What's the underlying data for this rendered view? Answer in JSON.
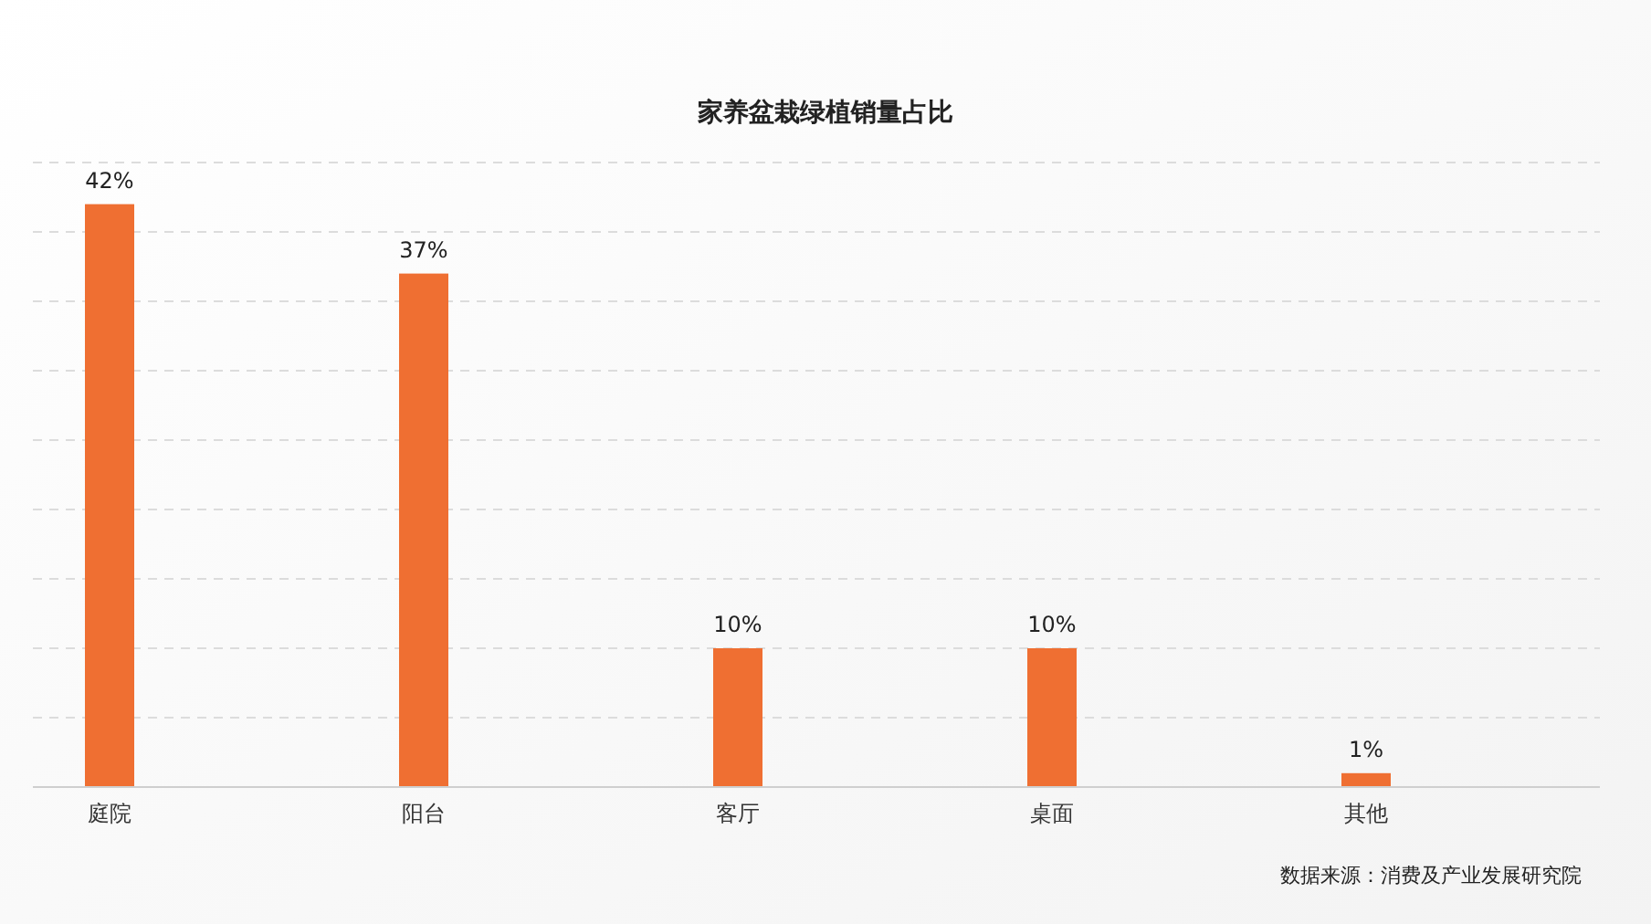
{
  "chart_data": {
    "type": "bar",
    "title": "家养盆栽绿植销量占比",
    "categories": [
      "庭院",
      "阳台",
      "客厅",
      "桌面",
      "其他"
    ],
    "values": [
      42,
      37,
      10,
      10,
      1
    ],
    "value_labels": [
      "42%",
      "37%",
      "10%",
      "10%",
      "1%"
    ],
    "color": "#ef6f32",
    "ylim": [
      0,
      45
    ],
    "yticks": [
      {
        "value": 0,
        "label": null
      },
      {
        "value": 5,
        "label": null
      },
      {
        "value": 10,
        "label": null
      },
      {
        "value": 15,
        "label": null
      },
      {
        "value": 20,
        "label": null
      },
      {
        "value": 25,
        "label": null
      },
      {
        "value": 30,
        "label": null
      },
      {
        "value": 35,
        "label": null
      },
      {
        "value": 40,
        "label": null
      },
      {
        "value": 45,
        "label": null
      }
    ],
    "grid": "y",
    "tick_labels": "x",
    "annotations": [
      "数据来源：消费及产业发展研究院"
    ]
  }
}
